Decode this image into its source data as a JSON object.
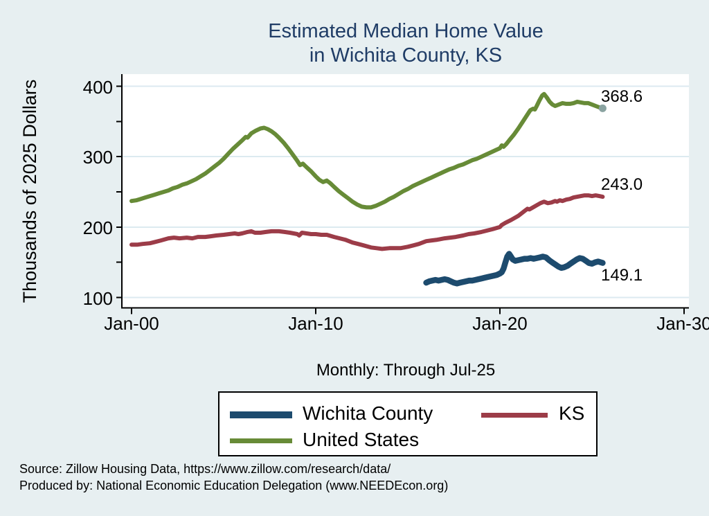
{
  "page": {
    "background": "#e7eff1"
  },
  "title": {
    "line1": "Estimated Median Home Value",
    "line2": "in Wichita County, KS",
    "color": "#1f3c66"
  },
  "y_axis": {
    "title": "Thousands of 2025 Dollars"
  },
  "x_axis": {
    "subtitle": "Monthly: Through Jul-25"
  },
  "legend": {
    "items": [
      {
        "series": "wichita_county",
        "label": "Wichita County"
      },
      {
        "series": "ks",
        "label": "KS"
      },
      {
        "series": "united_states",
        "label": "United States"
      }
    ]
  },
  "source": {
    "line1": "Source: Zillow Housing Data, https://www.zillow.com/research/data/",
    "line2": "Produced by: National Economic Education Delegation (www.NEEDEcon.org)"
  },
  "colors": {
    "background": "#e7eff1",
    "title_navy": "#1f3c66",
    "plot_background": "#ffffff",
    "gridline": "#dceaf0",
    "axis": "#000000",
    "wichita_county": "#1d4b6e",
    "ks": "#9c3c48",
    "united_states": "#678b37",
    "end_dot": "#8aa3a1"
  },
  "chart_data": {
    "type": "line",
    "title": "Estimated Median Home Value in Wichita County, KS",
    "ylabel": "Thousands of 2025 Dollars",
    "xlabel": "Monthly: Through Jul-25",
    "x_unit": "decimal_year",
    "xlim": [
      1999.5,
      2030.3
    ],
    "ylim": [
      85,
      417
    ],
    "grid": "horizontal",
    "legend_position": "bottom",
    "y_ticks_labeled": [
      100,
      200,
      300,
      400
    ],
    "y_ticks_all": [
      100,
      150,
      200,
      250,
      300,
      350,
      400
    ],
    "x_ticks": [
      {
        "label": "Jan-00",
        "value": 2000
      },
      {
        "label": "Jan-10",
        "value": 2010
      },
      {
        "label": "Jan-20",
        "value": 2020
      },
      {
        "label": "Jan-30",
        "value": 2030
      }
    ],
    "series": [
      {
        "id": "united_states",
        "name": "United States",
        "color": "#678b37",
        "line_width": 6,
        "end_label": "368.6",
        "end_value": 368.6,
        "end_dot": true,
        "points": [
          [
            2000.0,
            237
          ],
          [
            2000.25,
            238
          ],
          [
            2000.5,
            240
          ],
          [
            2000.75,
            242
          ],
          [
            2001.0,
            244
          ],
          [
            2001.25,
            246
          ],
          [
            2001.5,
            248
          ],
          [
            2001.75,
            250
          ],
          [
            2002.0,
            252
          ],
          [
            2002.25,
            255
          ],
          [
            2002.5,
            257
          ],
          [
            2002.75,
            260
          ],
          [
            2003.0,
            262
          ],
          [
            2003.25,
            265
          ],
          [
            2003.5,
            268
          ],
          [
            2003.75,
            272
          ],
          [
            2004.0,
            276
          ],
          [
            2004.25,
            281
          ],
          [
            2004.5,
            286
          ],
          [
            2004.75,
            291
          ],
          [
            2005.0,
            297
          ],
          [
            2005.25,
            304
          ],
          [
            2005.5,
            311
          ],
          [
            2005.75,
            317
          ],
          [
            2006.0,
            323
          ],
          [
            2006.2,
            328
          ],
          [
            2006.3,
            327
          ],
          [
            2006.5,
            333
          ],
          [
            2006.75,
            337
          ],
          [
            2007.0,
            340
          ],
          [
            2007.2,
            341
          ],
          [
            2007.4,
            339
          ],
          [
            2007.6,
            336
          ],
          [
            2007.8,
            332
          ],
          [
            2008.0,
            327
          ],
          [
            2008.25,
            320
          ],
          [
            2008.5,
            312
          ],
          [
            2008.75,
            303
          ],
          [
            2009.0,
            294
          ],
          [
            2009.15,
            288
          ],
          [
            2009.3,
            290
          ],
          [
            2009.5,
            285
          ],
          [
            2009.75,
            279
          ],
          [
            2010.0,
            272
          ],
          [
            2010.2,
            267
          ],
          [
            2010.4,
            264
          ],
          [
            2010.6,
            266
          ],
          [
            2010.8,
            262
          ],
          [
            2011.0,
            257
          ],
          [
            2011.25,
            251
          ],
          [
            2011.5,
            246
          ],
          [
            2011.75,
            241
          ],
          [
            2012.0,
            236
          ],
          [
            2012.25,
            232
          ],
          [
            2012.5,
            229
          ],
          [
            2012.75,
            228
          ],
          [
            2013.0,
            228
          ],
          [
            2013.25,
            230
          ],
          [
            2013.5,
            233
          ],
          [
            2013.75,
            236
          ],
          [
            2014.0,
            240
          ],
          [
            2014.25,
            243
          ],
          [
            2014.5,
            247
          ],
          [
            2014.75,
            251
          ],
          [
            2015.0,
            254
          ],
          [
            2015.25,
            258
          ],
          [
            2015.5,
            261
          ],
          [
            2015.75,
            264
          ],
          [
            2016.0,
            267
          ],
          [
            2016.25,
            270
          ],
          [
            2016.5,
            273
          ],
          [
            2016.75,
            276
          ],
          [
            2017.0,
            279
          ],
          [
            2017.25,
            282
          ],
          [
            2017.5,
            284
          ],
          [
            2017.75,
            287
          ],
          [
            2018.0,
            289
          ],
          [
            2018.25,
            292
          ],
          [
            2018.5,
            295
          ],
          [
            2018.75,
            297
          ],
          [
            2019.0,
            300
          ],
          [
            2019.25,
            303
          ],
          [
            2019.5,
            306
          ],
          [
            2019.75,
            309
          ],
          [
            2020.0,
            312
          ],
          [
            2020.1,
            316
          ],
          [
            2020.2,
            314
          ],
          [
            2020.35,
            318
          ],
          [
            2020.5,
            323
          ],
          [
            2020.75,
            331
          ],
          [
            2021.0,
            340
          ],
          [
            2021.25,
            350
          ],
          [
            2021.5,
            360
          ],
          [
            2021.65,
            366
          ],
          [
            2021.8,
            368
          ],
          [
            2021.9,
            367
          ],
          [
            2022.0,
            372
          ],
          [
            2022.15,
            380
          ],
          [
            2022.3,
            387
          ],
          [
            2022.4,
            389
          ],
          [
            2022.55,
            384
          ],
          [
            2022.7,
            378
          ],
          [
            2022.85,
            374
          ],
          [
            2023.0,
            372
          ],
          [
            2023.2,
            374
          ],
          [
            2023.4,
            376
          ],
          [
            2023.6,
            375
          ],
          [
            2023.8,
            375
          ],
          [
            2024.0,
            376
          ],
          [
            2024.2,
            378
          ],
          [
            2024.4,
            377
          ],
          [
            2024.6,
            376
          ],
          [
            2024.8,
            376
          ],
          [
            2025.0,
            374
          ],
          [
            2025.2,
            372
          ],
          [
            2025.4,
            370
          ],
          [
            2025.58,
            368.6
          ]
        ]
      },
      {
        "id": "ks",
        "name": "KS",
        "color": "#9c3c48",
        "line_width": 6,
        "end_label": "243.0",
        "end_value": 243.0,
        "end_dot": false,
        "points": [
          [
            2000.0,
            175
          ],
          [
            2000.3,
            175
          ],
          [
            2000.6,
            176
          ],
          [
            2001.0,
            177
          ],
          [
            2001.3,
            179
          ],
          [
            2001.6,
            181
          ],
          [
            2002.0,
            184
          ],
          [
            2002.3,
            185
          ],
          [
            2002.6,
            184
          ],
          [
            2003.0,
            185
          ],
          [
            2003.3,
            184
          ],
          [
            2003.6,
            186
          ],
          [
            2004.0,
            186
          ],
          [
            2004.3,
            187
          ],
          [
            2004.6,
            188
          ],
          [
            2005.0,
            189
          ],
          [
            2005.3,
            190
          ],
          [
            2005.6,
            191
          ],
          [
            2005.8,
            190
          ],
          [
            2006.0,
            191
          ],
          [
            2006.3,
            193
          ],
          [
            2006.5,
            194
          ],
          [
            2006.7,
            192
          ],
          [
            2007.0,
            192
          ],
          [
            2007.3,
            193
          ],
          [
            2007.6,
            194
          ],
          [
            2008.0,
            194
          ],
          [
            2008.3,
            193
          ],
          [
            2008.6,
            192
          ],
          [
            2009.0,
            190
          ],
          [
            2009.1,
            188
          ],
          [
            2009.25,
            192
          ],
          [
            2009.5,
            191
          ],
          [
            2009.75,
            190
          ],
          [
            2010.0,
            190
          ],
          [
            2010.3,
            189
          ],
          [
            2010.6,
            189
          ],
          [
            2011.0,
            186
          ],
          [
            2011.3,
            184
          ],
          [
            2011.6,
            182
          ],
          [
            2012.0,
            178
          ],
          [
            2012.3,
            176
          ],
          [
            2012.6,
            174
          ],
          [
            2013.0,
            171
          ],
          [
            2013.3,
            170
          ],
          [
            2013.6,
            169
          ],
          [
            2014.0,
            170
          ],
          [
            2014.3,
            170
          ],
          [
            2014.6,
            170
          ],
          [
            2015.0,
            172
          ],
          [
            2015.3,
            174
          ],
          [
            2015.6,
            176
          ],
          [
            2016.0,
            180
          ],
          [
            2016.3,
            181
          ],
          [
            2016.6,
            182
          ],
          [
            2017.0,
            184
          ],
          [
            2017.3,
            185
          ],
          [
            2017.6,
            186
          ],
          [
            2018.0,
            188
          ],
          [
            2018.3,
            190
          ],
          [
            2018.6,
            191
          ],
          [
            2019.0,
            193
          ],
          [
            2019.3,
            195
          ],
          [
            2019.6,
            197
          ],
          [
            2020.0,
            200
          ],
          [
            2020.1,
            203
          ],
          [
            2020.3,
            206
          ],
          [
            2020.6,
            210
          ],
          [
            2021.0,
            216
          ],
          [
            2021.2,
            220
          ],
          [
            2021.4,
            224
          ],
          [
            2021.5,
            226
          ],
          [
            2021.6,
            225
          ],
          [
            2021.8,
            228
          ],
          [
            2022.0,
            231
          ],
          [
            2022.2,
            234
          ],
          [
            2022.4,
            236
          ],
          [
            2022.6,
            234
          ],
          [
            2022.8,
            235
          ],
          [
            2023.0,
            237
          ],
          [
            2023.1,
            236
          ],
          [
            2023.25,
            238
          ],
          [
            2023.4,
            237
          ],
          [
            2023.6,
            239
          ],
          [
            2023.8,
            240
          ],
          [
            2024.0,
            242
          ],
          [
            2024.2,
            243
          ],
          [
            2024.4,
            244
          ],
          [
            2024.6,
            245
          ],
          [
            2024.8,
            245
          ],
          [
            2025.0,
            244
          ],
          [
            2025.2,
            245
          ],
          [
            2025.4,
            244
          ],
          [
            2025.58,
            243.0
          ]
        ]
      },
      {
        "id": "wichita_county",
        "name": "Wichita County",
        "color": "#1d4b6e",
        "line_width": 8.5,
        "end_label": "149.1",
        "end_value": 149.1,
        "end_dot": false,
        "points": [
          [
            2016.0,
            121
          ],
          [
            2016.17,
            123
          ],
          [
            2016.33,
            124
          ],
          [
            2016.5,
            125
          ],
          [
            2016.67,
            124
          ],
          [
            2016.83,
            125
          ],
          [
            2017.0,
            126
          ],
          [
            2017.17,
            125
          ],
          [
            2017.33,
            123
          ],
          [
            2017.5,
            121
          ],
          [
            2017.67,
            120
          ],
          [
            2017.83,
            121
          ],
          [
            2018.0,
            122
          ],
          [
            2018.17,
            123
          ],
          [
            2018.33,
            124
          ],
          [
            2018.5,
            124
          ],
          [
            2018.67,
            125
          ],
          [
            2018.83,
            126
          ],
          [
            2019.0,
            127
          ],
          [
            2019.17,
            128
          ],
          [
            2019.33,
            129
          ],
          [
            2019.5,
            130
          ],
          [
            2019.67,
            131
          ],
          [
            2019.83,
            132
          ],
          [
            2020.0,
            134
          ],
          [
            2020.1,
            136
          ],
          [
            2020.2,
            141
          ],
          [
            2020.3,
            150
          ],
          [
            2020.4,
            158
          ],
          [
            2020.5,
            162
          ],
          [
            2020.6,
            158
          ],
          [
            2020.7,
            154
          ],
          [
            2020.83,
            152
          ],
          [
            2021.0,
            153
          ],
          [
            2021.17,
            154
          ],
          [
            2021.33,
            155
          ],
          [
            2021.5,
            155
          ],
          [
            2021.67,
            156
          ],
          [
            2021.83,
            155
          ],
          [
            2022.0,
            156
          ],
          [
            2022.17,
            157
          ],
          [
            2022.33,
            158
          ],
          [
            2022.5,
            157
          ],
          [
            2022.67,
            153
          ],
          [
            2022.83,
            150
          ],
          [
            2023.0,
            147
          ],
          [
            2023.17,
            144
          ],
          [
            2023.33,
            142
          ],
          [
            2023.5,
            143
          ],
          [
            2023.67,
            145
          ],
          [
            2023.83,
            148
          ],
          [
            2024.0,
            151
          ],
          [
            2024.17,
            154
          ],
          [
            2024.33,
            156
          ],
          [
            2024.5,
            155
          ],
          [
            2024.67,
            152
          ],
          [
            2024.83,
            149
          ],
          [
            2025.0,
            148
          ],
          [
            2025.17,
            150
          ],
          [
            2025.33,
            151
          ],
          [
            2025.58,
            149.1
          ]
        ]
      }
    ]
  }
}
